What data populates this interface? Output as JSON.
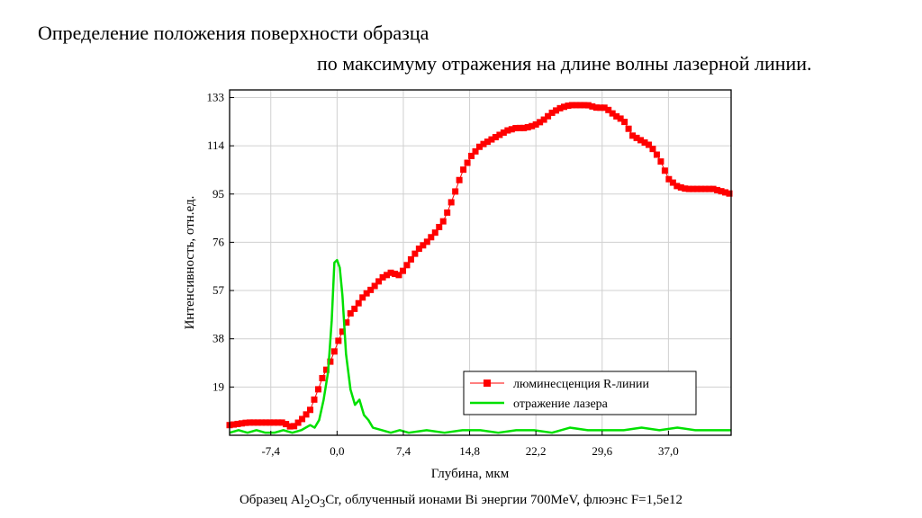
{
  "title_line1": "Определение положения поверхности образца",
  "title_line2": "по максимуму отражения на длине волны лазерной линии.",
  "caption": {
    "prefix": "Образец Al",
    "sub1": "2",
    "mid1": "O",
    "sub2": "3",
    "suffix": "Cr, облученный ионами Bi энергии 700MeV, флюэнс F=1,5e12"
  },
  "colors": {
    "series_r_line": "#ff0000",
    "series_laser": "#00e000",
    "grid": "#d0d0d0"
  },
  "chart_data": {
    "type": "line",
    "xlabel": "Глубина, мкм",
    "ylabel": "Интенсивность, отн.ед.",
    "xlim": [
      -12.0,
      44.0
    ],
    "ylim": [
      0,
      136
    ],
    "xticks": [
      -7.4,
      0.0,
      7.4,
      14.8,
      22.2,
      29.6,
      37.0
    ],
    "xtick_labels": [
      "-7,4",
      "0,0",
      "7,4",
      "14,8",
      "22,2",
      "29,6",
      "37,0"
    ],
    "yticks": [
      19,
      38,
      57,
      76,
      95,
      114,
      133
    ],
    "ytick_labels": [
      "19",
      "38",
      "57",
      "76",
      "95",
      "114",
      "133"
    ],
    "grid": true,
    "legend_position": "bottom-right",
    "series": [
      {
        "name": "люминесценция R-линии",
        "marker": "square",
        "x": [
          -12.0,
          -10.0,
          -8.0,
          -6.0,
          -5.0,
          -4.0,
          -3.0,
          -2.0,
          -1.5,
          -1.0,
          -0.5,
          0.0,
          0.5,
          1.0,
          1.5,
          2.0,
          3.0,
          4.0,
          5.0,
          6.0,
          7.0,
          8.0,
          9.0,
          10.0,
          11.0,
          12.0,
          13.0,
          14.0,
          15.0,
          16.0,
          17.0,
          18.0,
          19.0,
          20.0,
          21.0,
          22.0,
          23.0,
          24.0,
          25.0,
          26.0,
          27.0,
          28.0,
          29.0,
          30.0,
          31.0,
          32.0,
          33.0,
          34.0,
          35.0,
          36.0,
          37.0,
          38.0,
          39.0,
          40.0,
          41.0,
          42.0,
          43.0,
          44.0
        ],
        "y": [
          4,
          5,
          5,
          5,
          3,
          6,
          10,
          19,
          24,
          27,
          31,
          36,
          40,
          44,
          48,
          50,
          55,
          58,
          62,
          64,
          63,
          68,
          73,
          76,
          80,
          85,
          94,
          104,
          110,
          114,
          116,
          118,
          120,
          121,
          121,
          122,
          124,
          127,
          129,
          130,
          130,
          130,
          129,
          129,
          126,
          124,
          118,
          116,
          114,
          109,
          101,
          98,
          97,
          97,
          97,
          97,
          96,
          95
        ]
      },
      {
        "name": "отражение лазера",
        "x": [
          -12.0,
          -11.0,
          -10.0,
          -9.0,
          -8.0,
          -7.0,
          -6.0,
          -5.0,
          -4.0,
          -3.0,
          -2.5,
          -2.0,
          -1.5,
          -1.0,
          -0.6,
          -0.3,
          0.0,
          0.3,
          0.6,
          1.0,
          1.5,
          2.0,
          2.5,
          3.0,
          3.5,
          4.0,
          5.0,
          6.0,
          7.0,
          8.0,
          10.0,
          12.0,
          14.0,
          16.0,
          18.0,
          20.0,
          22.0,
          24.0,
          26.0,
          28.0,
          30.0,
          32.0,
          34.0,
          36.0,
          38.0,
          40.0,
          42.0,
          44.0
        ],
        "y": [
          1,
          2,
          1,
          2,
          1,
          1,
          2,
          1,
          2,
          4,
          3,
          6,
          14,
          25,
          45,
          68,
          69,
          66,
          55,
          32,
          18,
          12,
          14,
          8,
          6,
          3,
          2,
          1,
          2,
          1,
          2,
          1,
          2,
          2,
          1,
          2,
          2,
          1,
          3,
          2,
          2,
          2,
          3,
          2,
          3,
          2,
          2,
          2
        ]
      }
    ]
  }
}
